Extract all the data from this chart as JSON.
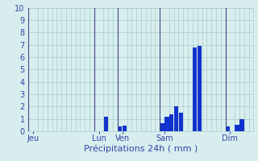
{
  "title": "",
  "xlabel": "Précipitations 24h ( mm )",
  "ylabel": "",
  "background_color": "#d8eeee",
  "bar_color": "#1133cc",
  "ylim": [
    0,
    10
  ],
  "yticks": [
    0,
    1,
    2,
    3,
    4,
    5,
    6,
    7,
    8,
    9,
    10
  ],
  "day_labels": [
    "Jeu",
    "Lun",
    "Ven",
    "Sam",
    "Dim"
  ],
  "day_tick_positions": [
    0.5,
    14.5,
    19.5,
    28.5,
    42.5
  ],
  "day_vline_positions": [
    0,
    14,
    19,
    28,
    42
  ],
  "n_bars": 48,
  "bar_values": [
    0,
    0,
    0,
    0,
    0,
    0,
    0,
    0,
    0,
    0,
    0,
    0,
    0,
    0,
    0,
    0,
    1.2,
    0,
    0,
    0.4,
    0.45,
    0,
    0,
    0,
    0,
    0,
    0,
    0,
    0.65,
    1.2,
    1.4,
    2.0,
    1.5,
    0,
    0,
    6.8,
    6.9,
    0,
    0,
    0,
    0,
    0,
    0.4,
    0,
    0.5,
    0.95,
    0,
    0
  ],
  "grid_color": "#aacccc",
  "tick_color": "#3344aa",
  "vline_color": "#444488",
  "xlabel_fontsize": 8,
  "tick_fontsize": 7
}
